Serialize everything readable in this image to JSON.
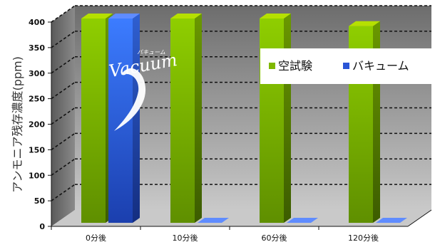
{
  "chart_data": {
    "type": "bar",
    "ylabel": "アンモニア残存濃度(ppm)",
    "categories": [
      "0分後",
      "10分後",
      "60分後",
      "120分後"
    ],
    "ylim": [
      0,
      400
    ],
    "yticks": [
      0,
      50,
      100,
      150,
      200,
      250,
      300,
      350,
      400
    ],
    "grid": true,
    "legend_position": "upper-right",
    "series": [
      {
        "name": "空試験",
        "color": "#7fb800",
        "values": [
          400,
          400,
          400,
          385
        ]
      },
      {
        "name": "バキューム",
        "color": "#2a55d6",
        "values": [
          400,
          0,
          0,
          0
        ]
      }
    ],
    "annotation": {
      "text": "Vacuum",
      "ruby": "バキューム"
    }
  }
}
